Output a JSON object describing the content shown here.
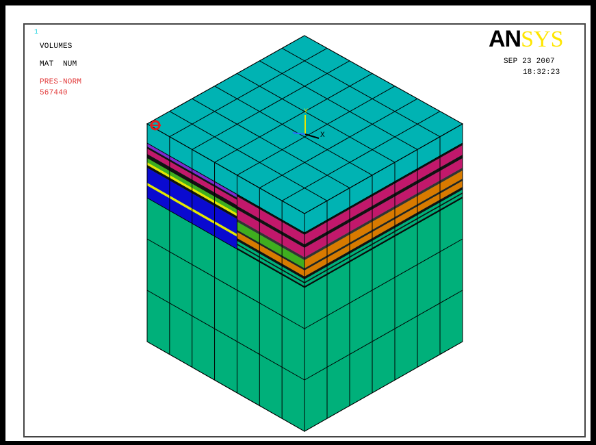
{
  "window": {
    "number": "1"
  },
  "info": {
    "line1": "VOLUMES",
    "line2": "MAT  NUM",
    "line3": "PRES-NORM",
    "line4": "567440"
  },
  "logo": {
    "bold_part": "AN",
    "light_part": "SYS"
  },
  "datetime": {
    "date": "SEP 23 2007",
    "time": "18:32:23"
  },
  "triad": {
    "y_label": "Y",
    "x_label": "X"
  },
  "colors": {
    "frame": "#000000",
    "top_face": "#00b3b3",
    "body": "#00b07a",
    "magenta": "#c2186b",
    "orange": "#d87a00",
    "green_layer": "#3fae1f",
    "blue_layer": "#0a0ad0",
    "purple_layer": "#7b2bd0",
    "yellow_layer": "#e6e600",
    "red_marker": "#e02020",
    "logo_yellow": "#ffe600"
  }
}
